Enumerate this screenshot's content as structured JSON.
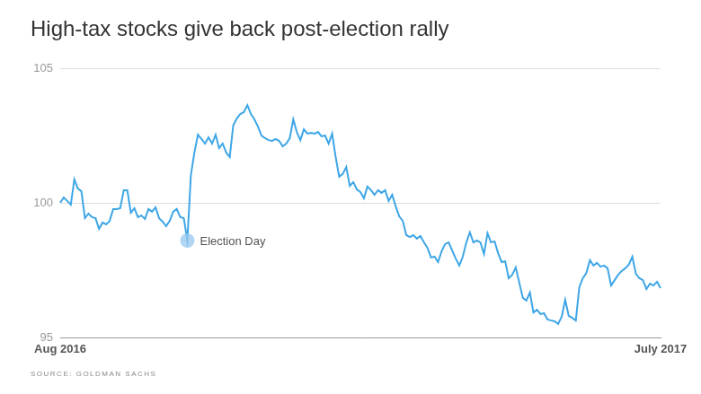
{
  "chart_data": {
    "type": "line",
    "title": "High-tax stocks give back post-election rally",
    "source": "SOURCE: GOLDMAN SACHS",
    "categories": [
      "Aug 2016",
      null,
      null,
      null,
      null,
      null,
      null,
      null,
      null,
      null,
      null,
      null,
      null,
      null,
      null,
      null,
      null,
      null,
      null,
      null,
      null,
      null,
      null,
      null,
      null,
      null,
      null,
      null,
      null,
      null,
      null,
      null,
      null,
      null,
      null,
      null,
      null,
      null,
      null,
      null,
      null,
      null,
      null,
      null,
      null,
      null,
      null,
      null,
      null,
      null,
      null,
      null,
      null,
      null,
      null,
      null,
      null,
      null,
      null,
      null,
      null,
      null,
      null,
      null,
      null,
      null,
      null,
      null,
      null,
      null,
      null,
      null,
      null,
      null,
      null,
      null,
      null,
      null,
      null,
      null,
      null,
      null,
      null,
      null,
      null,
      null,
      null,
      null,
      null,
      null,
      null,
      null,
      null,
      null,
      null,
      null,
      null,
      null,
      null,
      null,
      null,
      null,
      null,
      null,
      null,
      null,
      null,
      null,
      null,
      null,
      null,
      null,
      null,
      null,
      null,
      null,
      null,
      null,
      null,
      null,
      null,
      null,
      null,
      null,
      null,
      null,
      null,
      null,
      null,
      null,
      null,
      null,
      null,
      null,
      null,
      null,
      null,
      null,
      null,
      null,
      null,
      null,
      null,
      null,
      null,
      null,
      null,
      null,
      null,
      null,
      null,
      null,
      null,
      null,
      null,
      null,
      null,
      null,
      null,
      null,
      null,
      null,
      null,
      null,
      null,
      null,
      null,
      null,
      null,
      null,
      "July 2017"
    ],
    "series": [
      {
        "color": "#3ea6e6",
        "values": [
          100.0,
          100.2,
          100.07,
          99.93,
          100.87,
          100.53,
          100.43,
          99.43,
          99.6,
          99.47,
          99.43,
          99.03,
          99.27,
          99.2,
          99.33,
          99.77,
          99.77,
          99.8,
          100.47,
          100.47,
          99.63,
          99.8,
          99.47,
          99.53,
          99.4,
          99.77,
          99.67,
          99.83,
          99.43,
          99.3,
          99.13,
          99.33,
          99.67,
          99.77,
          99.47,
          99.43,
          98.6,
          101.03,
          101.87,
          102.53,
          102.37,
          102.2,
          102.43,
          102.2,
          102.53,
          102.03,
          102.2,
          101.87,
          101.7,
          102.87,
          103.13,
          103.3,
          103.37,
          103.63,
          103.3,
          103.1,
          102.83,
          102.5,
          102.4,
          102.33,
          102.3,
          102.37,
          102.3,
          102.1,
          102.2,
          102.4,
          103.1,
          102.63,
          102.33,
          102.73,
          102.57,
          102.6,
          102.57,
          102.63,
          102.47,
          102.5,
          102.2,
          102.57,
          101.7,
          100.97,
          101.07,
          101.33,
          100.63,
          100.77,
          100.5,
          100.4,
          100.17,
          100.6,
          100.47,
          100.3,
          100.47,
          100.37,
          100.47,
          100.07,
          100.3,
          99.87,
          99.5,
          99.33,
          98.8,
          98.73,
          98.8,
          98.67,
          98.77,
          98.53,
          98.33,
          97.97,
          98.0,
          97.8,
          98.2,
          98.47,
          98.53,
          98.23,
          97.93,
          97.67,
          98.0,
          98.53,
          98.9,
          98.53,
          98.6,
          98.53,
          98.1,
          98.87,
          98.53,
          98.57,
          98.13,
          97.8,
          97.83,
          97.2,
          97.33,
          97.6,
          97.03,
          96.47,
          96.37,
          96.67,
          95.93,
          96.03,
          95.87,
          95.9,
          95.67,
          95.63,
          95.6,
          95.5,
          95.77,
          96.4,
          95.8,
          95.73,
          95.63,
          96.87,
          97.2,
          97.4,
          97.87,
          97.67,
          97.77,
          97.63,
          97.67,
          97.57,
          96.93,
          97.13,
          97.33,
          97.47,
          97.57,
          97.7,
          98.0,
          97.37,
          97.2,
          97.13,
          96.8,
          97.0,
          96.93,
          97.07,
          96.83
        ]
      }
    ],
    "annotations": [
      {
        "text": "Election Day",
        "index": 36
      }
    ],
    "ylim": [
      95,
      105
    ],
    "yticks": [
      95,
      100,
      105
    ],
    "grid": true
  }
}
